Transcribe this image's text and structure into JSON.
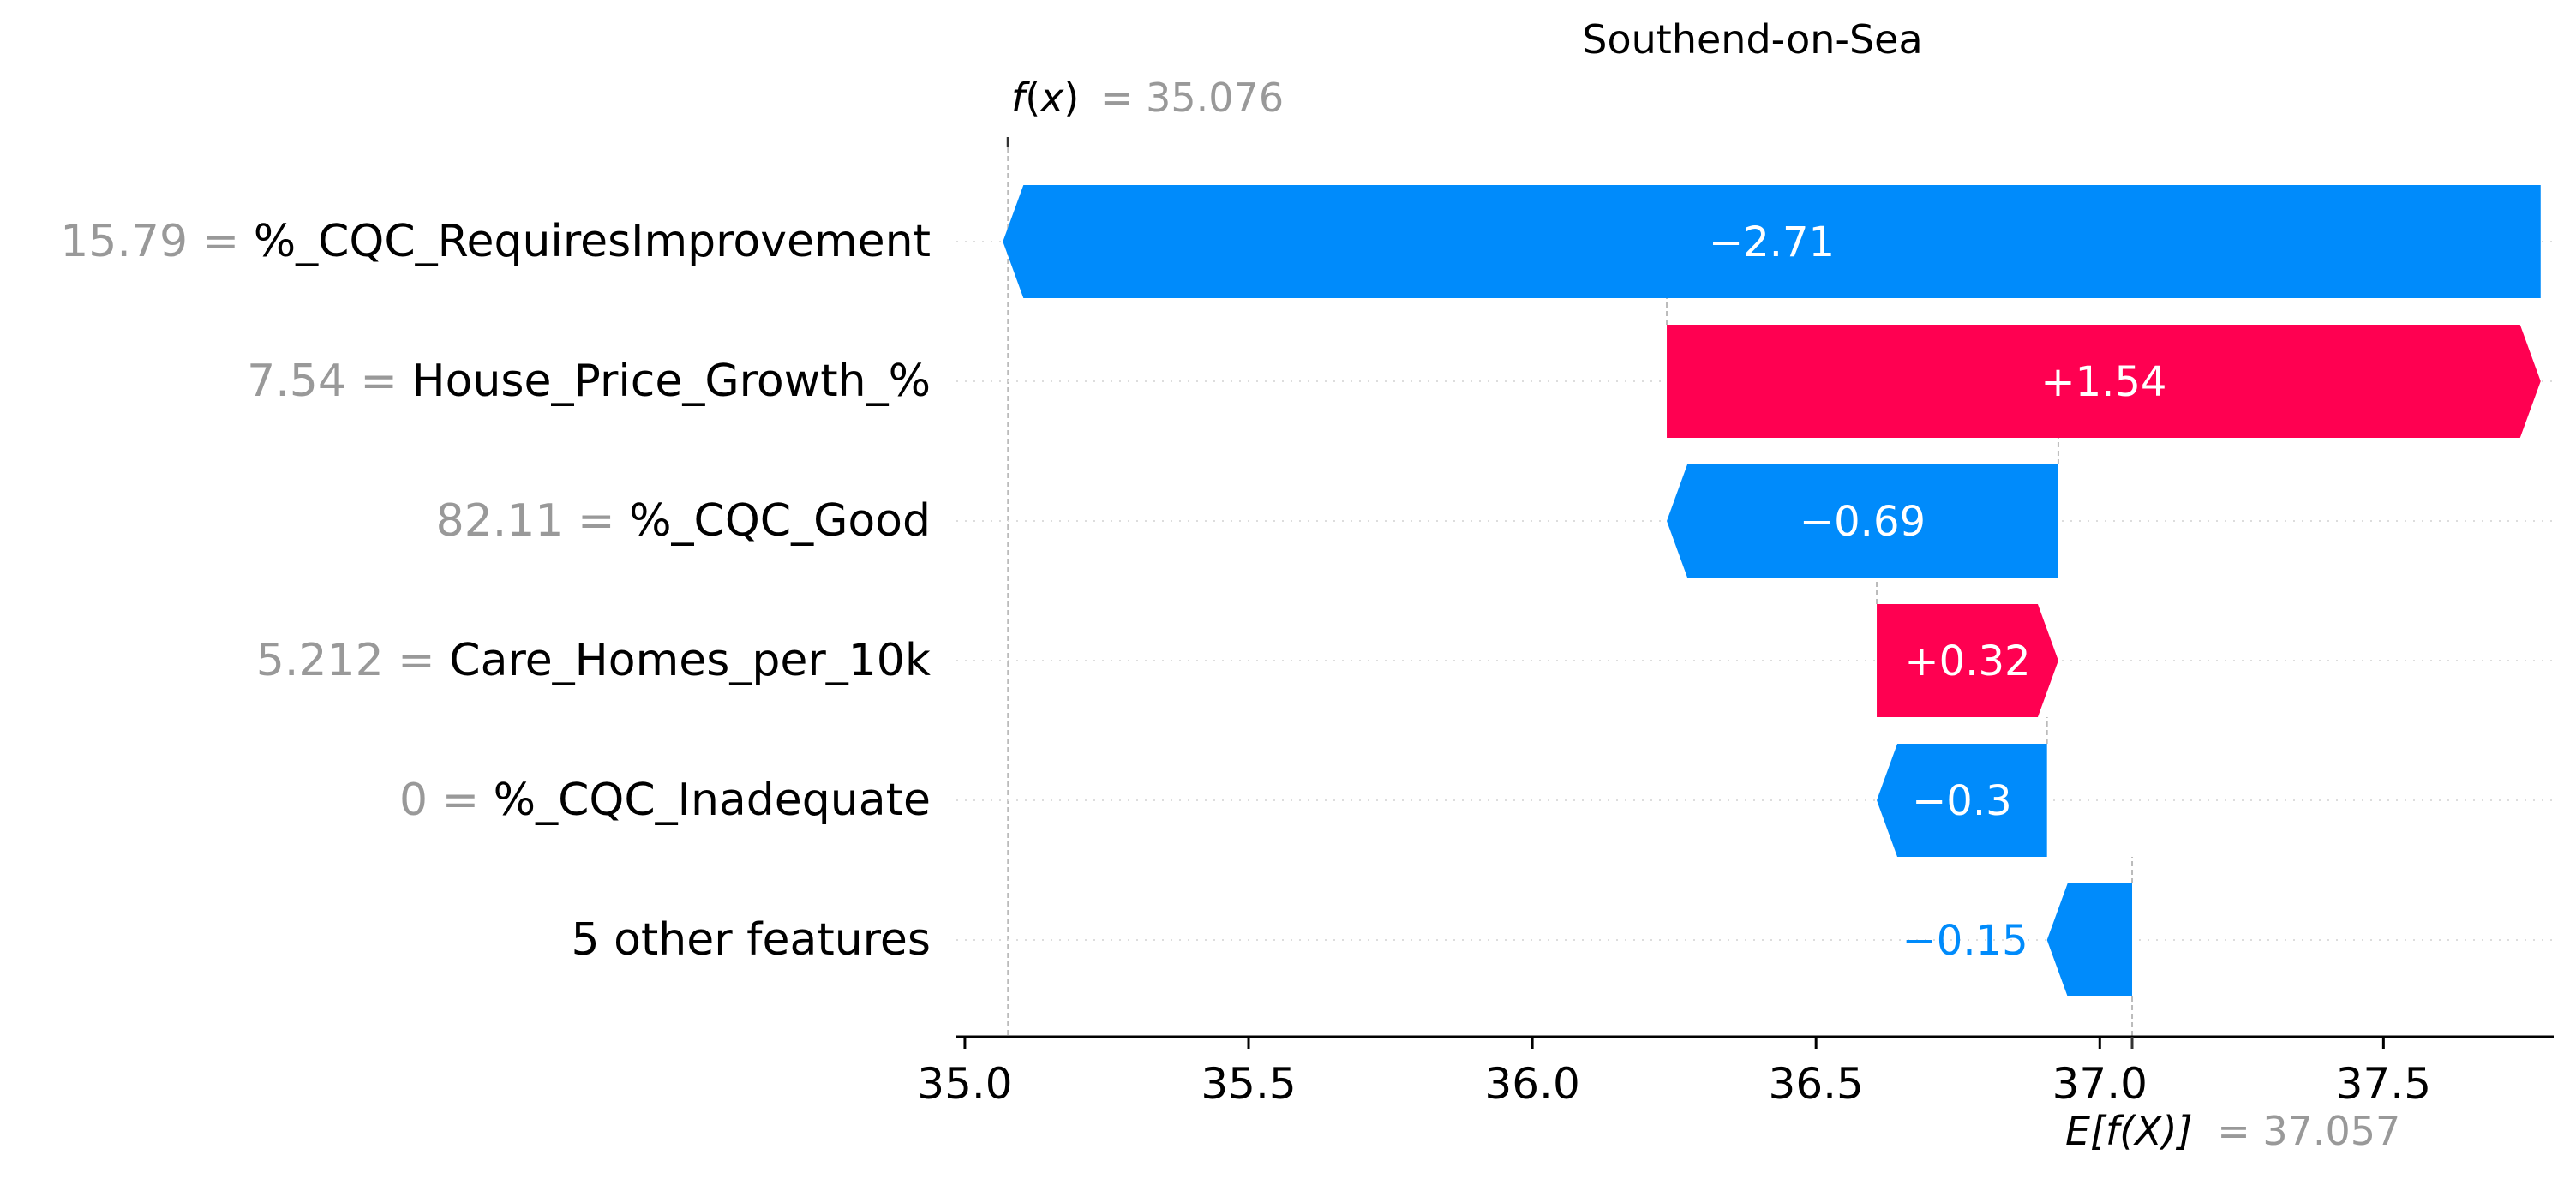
{
  "chart_data": {
    "type": "bar",
    "subtype": "shap-waterfall",
    "title": "Southend-on-Sea",
    "fx_label_pre": "f",
    "fx_label_var": "x",
    "fx_value_text": "= 35.076",
    "fx": 35.076,
    "efx_label": "E[f(X)]",
    "efx_value_text": "= 37.057",
    "base_value": 37.057,
    "xlim": [
      34.985,
      37.8
    ],
    "ticks": [
      35.0,
      35.5,
      36.0,
      36.5,
      37.0,
      37.5
    ],
    "tick_labels": [
      "35.0",
      "35.5",
      "36.0",
      "36.5",
      "37.0",
      "37.5"
    ],
    "grid": false,
    "features": [
      {
        "value_text": "15.79 =",
        "name": "%_CQC_RequiresImprovement",
        "contribution": -2.71,
        "label": "−2.71"
      },
      {
        "value_text": "7.54 =",
        "name": "House_Price_Growth_%",
        "contribution": 1.54,
        "label": "+1.54"
      },
      {
        "value_text": "82.11 =",
        "name": "%_CQC_Good",
        "contribution": -0.69,
        "label": "−0.69"
      },
      {
        "value_text": "5.212 =",
        "name": "Care_Homes_per_10k",
        "contribution": 0.32,
        "label": "+0.32"
      },
      {
        "value_text": "0 =",
        "name": "%_CQC_Inadequate",
        "contribution": -0.3,
        "label": "−0.3"
      },
      {
        "value_text": "",
        "name": "5 other features",
        "contribution": -0.15,
        "label": "−0.15"
      }
    ],
    "colors": {
      "negative": "#008bfb",
      "positive": "#ff0051",
      "value_gray": "#999999",
      "text": "#000000",
      "axis": "#333333"
    }
  }
}
